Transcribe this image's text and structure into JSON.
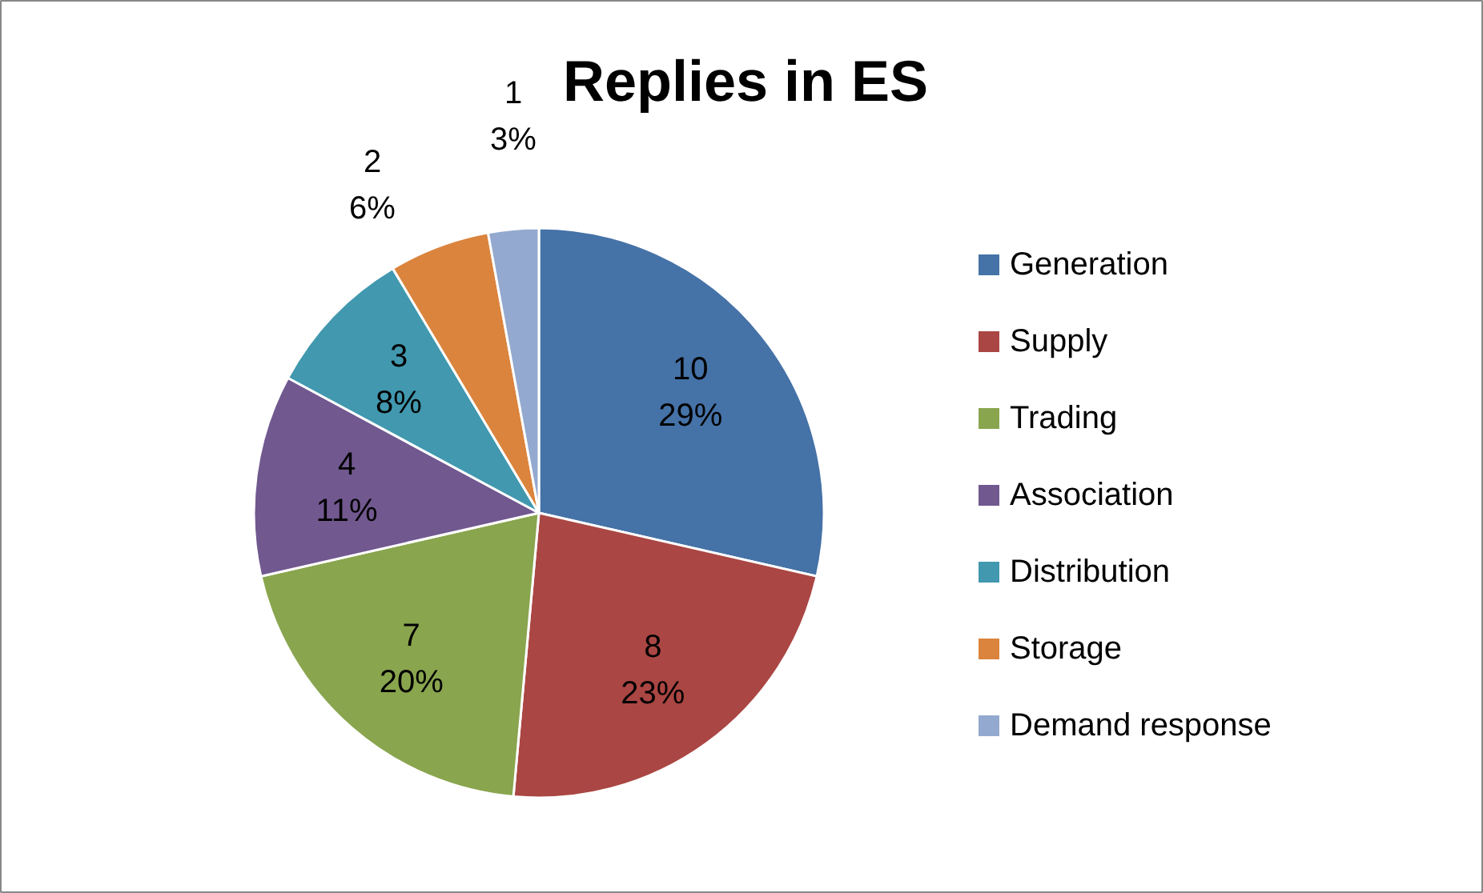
{
  "chart_data": {
    "type": "pie",
    "title": "Replies in ES",
    "categories": [
      "Generation",
      "Supply",
      "Trading",
      "Association",
      "Distribution",
      "Storage",
      "Demand response"
    ],
    "values": [
      10,
      8,
      7,
      4,
      3,
      2,
      1
    ],
    "colors": [
      "#4572a7",
      "#aa4643",
      "#89a54e",
      "#71588f",
      "#4198af",
      "#db843d",
      "#93a9cf"
    ],
    "value_labels": [
      "10\n29%",
      "8\n23%",
      "7\n20%",
      "4\n11%",
      "3\n8%",
      "2\n6%",
      "1\n3%"
    ],
    "legend": "right"
  }
}
